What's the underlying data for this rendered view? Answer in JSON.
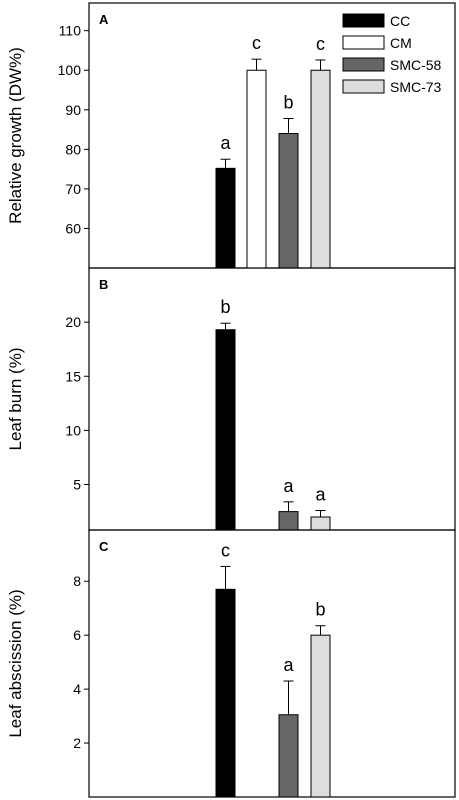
{
  "colors": {
    "CC": "#000000",
    "CM": "#ffffff",
    "SMC-58": "#666666",
    "SMC-73": "#dddddd"
  },
  "chart_data": [
    {
      "panel": "A",
      "type": "bar",
      "ylabel": "Relative growth (DW%)",
      "ylim": [
        50,
        117
      ],
      "yticks": [
        60,
        70,
        80,
        90,
        100,
        110
      ],
      "categories": [
        "CC",
        "CM",
        "SMC-58",
        "SMC-73"
      ],
      "values": [
        75.2,
        100.0,
        84.0,
        100.0
      ],
      "errors": [
        2.3,
        2.8,
        3.8,
        2.6
      ],
      "letters": [
        "a",
        "c",
        "b",
        "c"
      ],
      "legend": {
        "position": "top-right",
        "entries": [
          "CC",
          "CM",
          "SMC-58",
          "SMC-73"
        ]
      }
    },
    {
      "panel": "B",
      "type": "bar",
      "ylabel": "Leaf burn (%)",
      "ylim": [
        0.8,
        25
      ],
      "yticks": [
        5,
        10,
        15,
        20
      ],
      "categories": [
        "CC",
        "CM",
        "SMC-58",
        "SMC-73"
      ],
      "values": [
        19.3,
        null,
        2.5,
        2.0
      ],
      "errors": [
        0.6,
        null,
        0.9,
        0.6
      ],
      "letters": [
        "b",
        "",
        "a",
        "a"
      ]
    },
    {
      "panel": "C",
      "type": "bar",
      "ylabel": "Leaf abscission  (%)",
      "ylim": [
        0,
        9.9
      ],
      "yticks": [
        2,
        4,
        6,
        8
      ],
      "categories": [
        "CC",
        "CM",
        "SMC-58",
        "SMC-73"
      ],
      "values": [
        7.7,
        null,
        3.05,
        6.0
      ],
      "errors": [
        0.85,
        null,
        1.25,
        0.35
      ],
      "letters": [
        "c",
        "",
        "a",
        "b"
      ]
    }
  ]
}
